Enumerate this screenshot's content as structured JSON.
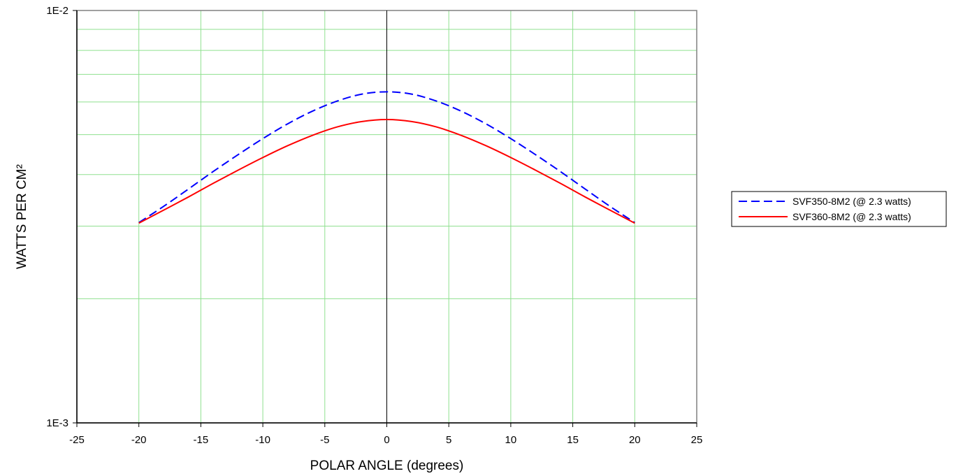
{
  "chart_data": {
    "type": "line",
    "xlabel": "POLAR ANGLE (degrees)",
    "ylabel": "WATTS PER CM²",
    "xlim": [
      -25,
      25
    ],
    "xticks": [
      -25,
      -20,
      -15,
      -10,
      -5,
      0,
      5,
      10,
      15,
      20,
      25
    ],
    "xtick_labels": [
      "-25",
      "-20",
      "-15",
      "-10",
      "-5",
      "0",
      "5",
      "10",
      "15",
      "20",
      "25"
    ],
    "ylim": [
      0.001,
      0.01
    ],
    "yscale": "log",
    "ytick_labels": [
      "1E-3",
      "1E-2"
    ],
    "grid": true,
    "legend_position": "right",
    "x": [
      -20,
      -18,
      -16,
      -14,
      -12,
      -10,
      -8,
      -6,
      -4,
      -2,
      0,
      2,
      4,
      6,
      8,
      10,
      12,
      14,
      16,
      18,
      20
    ],
    "series": [
      {
        "name": "SVF350-8M2 (@ 2.3 watts)",
        "color": "#0000ff",
        "dash": "dashed",
        "values": [
          0.00306,
          0.00335,
          0.00369,
          0.00407,
          0.00447,
          0.00489,
          0.00531,
          0.0057,
          0.00603,
          0.00627,
          0.00635,
          0.00627,
          0.00603,
          0.0057,
          0.00531,
          0.00489,
          0.00447,
          0.00407,
          0.00369,
          0.00335,
          0.00306
        ]
      },
      {
        "name": "SVF360-8M2 (@ 2.3 watts)",
        "color": "#ff0000",
        "dash": "solid",
        "values": [
          0.00305,
          0.00328,
          0.00353,
          0.00381,
          0.0041,
          0.0044,
          0.0047,
          0.00498,
          0.00522,
          0.00538,
          0.00544,
          0.00538,
          0.00522,
          0.00498,
          0.0047,
          0.0044,
          0.0041,
          0.00381,
          0.00353,
          0.00328,
          0.00305
        ]
      }
    ]
  }
}
